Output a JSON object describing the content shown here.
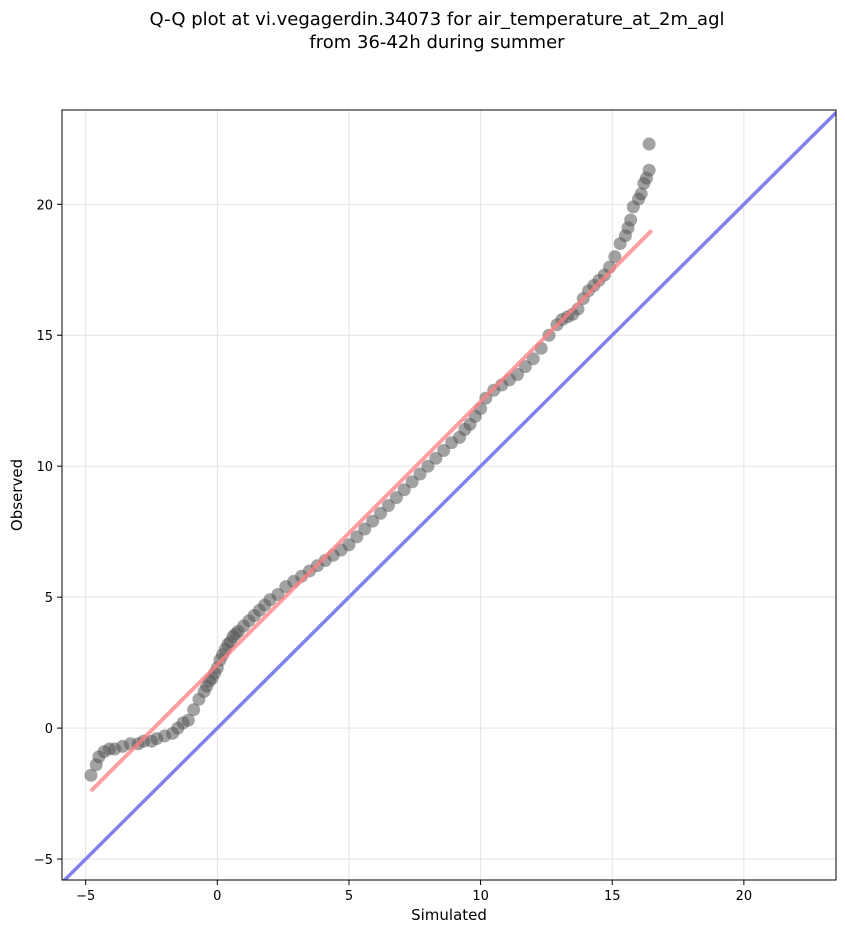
{
  "chart_data": {
    "type": "scatter",
    "title_line1": "Q-Q plot at vi.vegagerdin.34073 for air_temperature_at_2m_agl",
    "title_line2": "from 36-42h during summer",
    "xlabel": "Simulated",
    "ylabel": "Observed",
    "xlim": [
      -5.9,
      23.5
    ],
    "ylim": [
      -5.8,
      23.6
    ],
    "xticks": [
      -5,
      0,
      5,
      10,
      15,
      20
    ],
    "yticks": [
      -5,
      0,
      5,
      10,
      15,
      20
    ],
    "xtick_labels": [
      "−5",
      "0",
      "5",
      "10",
      "15",
      "20"
    ],
    "ytick_labels": [
      "−5",
      "0",
      "5",
      "10",
      "15",
      "20"
    ],
    "grid": true,
    "series": [
      {
        "role": "quantiles",
        "color": "#555555",
        "x": [
          -4.8,
          -4.6,
          -4.5,
          -4.3,
          -4.1,
          -3.9,
          -3.6,
          -3.3,
          -3.0,
          -2.8,
          -2.5,
          -2.3,
          -2.0,
          -1.7,
          -1.5,
          -1.3,
          -1.1,
          -0.9,
          -0.7,
          -0.5,
          -0.4,
          -0.3,
          -0.2,
          -0.1,
          0.0,
          0.1,
          0.2,
          0.3,
          0.4,
          0.5,
          0.6,
          0.7,
          0.8,
          1.0,
          1.2,
          1.4,
          1.6,
          1.8,
          2.0,
          2.3,
          2.6,
          2.9,
          3.2,
          3.5,
          3.8,
          4.1,
          4.4,
          4.7,
          5.0,
          5.3,
          5.6,
          5.9,
          6.2,
          6.5,
          6.8,
          7.1,
          7.4,
          7.7,
          8.0,
          8.3,
          8.6,
          8.9,
          9.2,
          9.4,
          9.6,
          9.8,
          10.0,
          10.2,
          10.5,
          10.8,
          11.1,
          11.4,
          11.7,
          12.0,
          12.3,
          12.6,
          12.9,
          13.1,
          13.3,
          13.5,
          13.7,
          13.9,
          14.1,
          14.3,
          14.5,
          14.7,
          14.9,
          15.1,
          15.3,
          15.5,
          15.6,
          15.7,
          15.8,
          16.0,
          16.1,
          16.2,
          16.3,
          16.4,
          16.4
        ],
        "y": [
          -1.8,
          -1.4,
          -1.1,
          -0.9,
          -0.8,
          -0.8,
          -0.7,
          -0.6,
          -0.6,
          -0.5,
          -0.5,
          -0.4,
          -0.3,
          -0.2,
          0.0,
          0.2,
          0.3,
          0.7,
          1.1,
          1.4,
          1.6,
          1.8,
          1.9,
          2.1,
          2.3,
          2.6,
          2.8,
          3.0,
          3.2,
          3.3,
          3.5,
          3.6,
          3.7,
          3.9,
          4.1,
          4.3,
          4.5,
          4.7,
          4.9,
          5.1,
          5.4,
          5.6,
          5.8,
          6.0,
          6.2,
          6.4,
          6.6,
          6.8,
          7.0,
          7.3,
          7.6,
          7.9,
          8.2,
          8.5,
          8.8,
          9.1,
          9.4,
          9.7,
          10.0,
          10.3,
          10.6,
          10.9,
          11.1,
          11.4,
          11.6,
          11.9,
          12.2,
          12.6,
          12.9,
          13.1,
          13.3,
          13.5,
          13.8,
          14.1,
          14.5,
          15.0,
          15.4,
          15.6,
          15.7,
          15.8,
          16.0,
          16.4,
          16.7,
          16.9,
          17.1,
          17.3,
          17.6,
          18.0,
          18.5,
          18.8,
          19.1,
          19.4,
          19.9,
          20.2,
          20.4,
          20.8,
          21.0,
          21.3,
          22.3
        ]
      },
      {
        "role": "fit-line",
        "color": "#ff8080",
        "x": [
          -4.8,
          16.5
        ],
        "y": [
          -2.4,
          19.0
        ]
      },
      {
        "role": "identity-line",
        "color": "#8080ee",
        "x": [
          -5.9,
          23.5
        ],
        "y": [
          -5.9,
          23.5
        ]
      }
    ]
  }
}
